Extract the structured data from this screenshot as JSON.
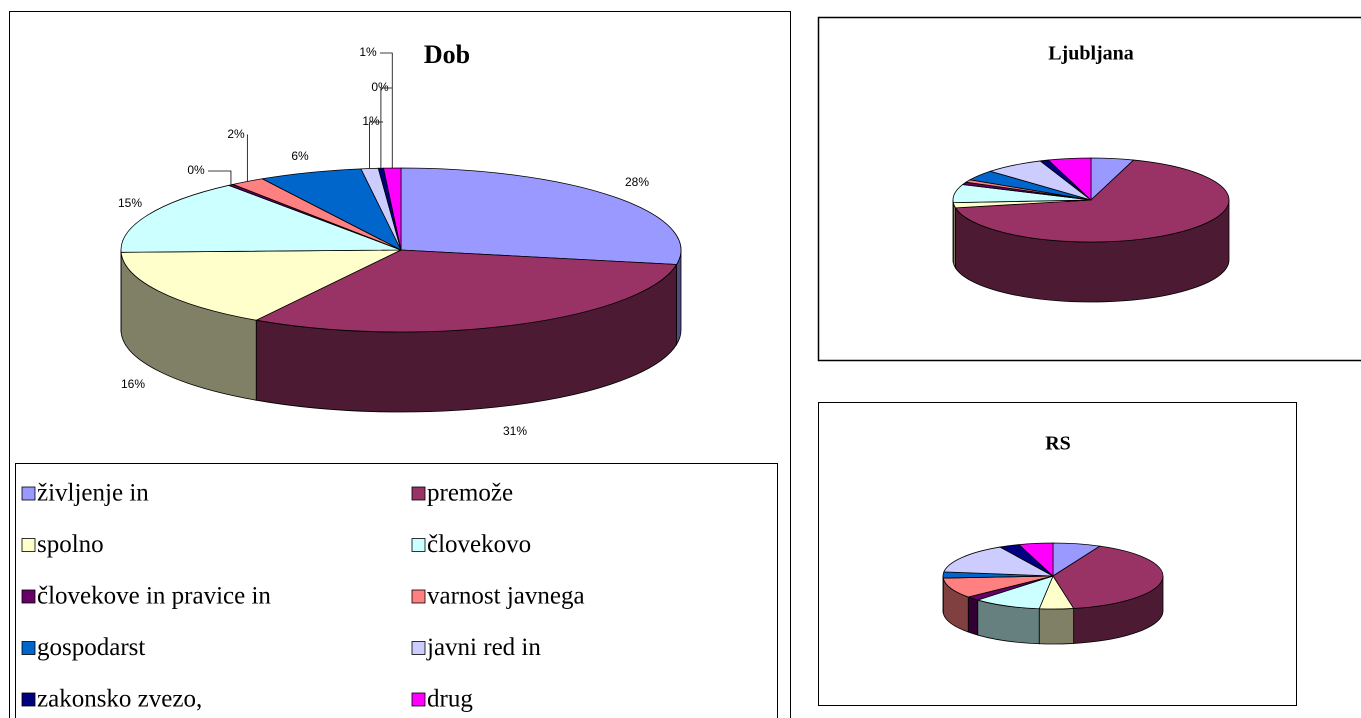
{
  "chart_data": [
    {
      "type": "pie",
      "title": "Dob",
      "categories": [
        "življenje in",
        "premože",
        "spolno",
        "človekovo",
        "človekove in pravice in",
        "varnost javnega",
        "gospodarst",
        "javni red in",
        "zakonsko zvezo,",
        "drug"
      ],
      "values": [
        28,
        31,
        16,
        15,
        0.3,
        2,
        6,
        1,
        0.3,
        1
      ],
      "value_labels": [
        "28%",
        "31%",
        "16%",
        "15%",
        "0%",
        "2%",
        "6%",
        "1%",
        "0%",
        "1%"
      ],
      "colors": [
        "#9999ff",
        "#993366",
        "#ffffcc",
        "#ccffff",
        "#660066",
        "#ff8080",
        "#0066cc",
        "#ccccff",
        "#000080",
        "#ff00ff"
      ],
      "legend": "bottom"
    },
    {
      "type": "pie",
      "title": "Ljubljana",
      "values": [
        5,
        67,
        2,
        7,
        1,
        1,
        4,
        7,
        1,
        5
      ],
      "colors": [
        "#9999ff",
        "#993366",
        "#ffffcc",
        "#ccffff",
        "#660066",
        "#ff8080",
        "#0066cc",
        "#ccccff",
        "#000080",
        "#ff00ff"
      ]
    },
    {
      "type": "pie",
      "title": "RS",
      "values": [
        7,
        40,
        5,
        10,
        2,
        10,
        3,
        15,
        3,
        5
      ],
      "colors": [
        "#9999ff",
        "#993366",
        "#ffffcc",
        "#ccffff",
        "#660066",
        "#ff8080",
        "#0066cc",
        "#ccccff",
        "#000080",
        "#ff00ff"
      ]
    }
  ]
}
